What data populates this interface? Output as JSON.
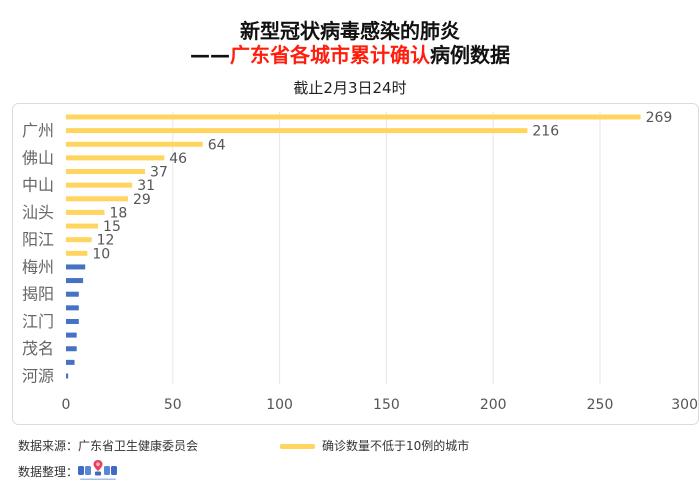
{
  "title": {
    "line1": "新型冠状病毒感染的肺炎",
    "line2_prefix": "——",
    "line2_highlight": "广东省各城市累计确认",
    "line2_suffix": "病例数据"
  },
  "subtitle": "截止2月3日24时",
  "colors": {
    "title_text": "#111111",
    "title_highlight": "#FF1E0E",
    "grid": "#E6E6E6",
    "frame": "#DCDCDC"
  },
  "chart_data": {
    "type": "bar",
    "orientation": "horizontal",
    "categories": [
      "",
      "广州",
      "",
      "佛山",
      "",
      "中山",
      "",
      "汕头",
      "",
      "阳江",
      "",
      "梅州",
      "",
      "揭阳",
      "",
      "江门",
      "",
      "茂名",
      "",
      "河源"
    ],
    "series": [
      {
        "name": "确诊数量不低于10例的城市",
        "color": "#FFD55F",
        "show_data_labels": true,
        "values": [
          269,
          216,
          64,
          46,
          37,
          31,
          29,
          18,
          15,
          12,
          10,
          null,
          null,
          null,
          null,
          null,
          null,
          null,
          null,
          null
        ]
      },
      {
        "color": "#4472C4",
        "show_data_labels": false,
        "values": [
          null,
          null,
          null,
          null,
          null,
          null,
          null,
          null,
          null,
          null,
          null,
          9,
          8,
          6,
          6,
          6,
          5,
          5,
          4,
          1
        ]
      }
    ],
    "xlim": [
      0,
      300
    ],
    "xticks": [
      0,
      50,
      100,
      150,
      200,
      250,
      300
    ],
    "grid": {
      "vertical": true,
      "horizontal": false
    },
    "legend_position": "bottom"
  },
  "footer": {
    "source": "数据来源：广东省卫生健康委员会",
    "compiled_by_label": "数据整理："
  }
}
